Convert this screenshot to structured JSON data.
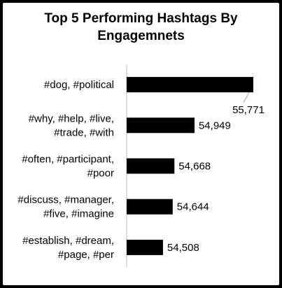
{
  "chart_data": {
    "type": "bar",
    "orientation": "horizontal",
    "title": "Top 5 Performing Hashtags By Engagemnets",
    "categories": [
      [
        "#dog, #political"
      ],
      [
        "#why, #help, #live,",
        "#trade, #with"
      ],
      [
        "#often, #participant,",
        "#poor"
      ],
      [
        "#discuss, #manager,",
        "#five, #imagine"
      ],
      [
        "#establish, #dream,",
        "#page, #per"
      ]
    ],
    "values": [
      55771,
      54949,
      54668,
      54644,
      54508
    ],
    "value_labels": [
      "55,771",
      "54,949",
      "54,668",
      "54,644",
      "54,508"
    ],
    "xlim": [
      54000,
      55830
    ],
    "grid": false,
    "legend": "none",
    "bar_color": "#000000"
  }
}
